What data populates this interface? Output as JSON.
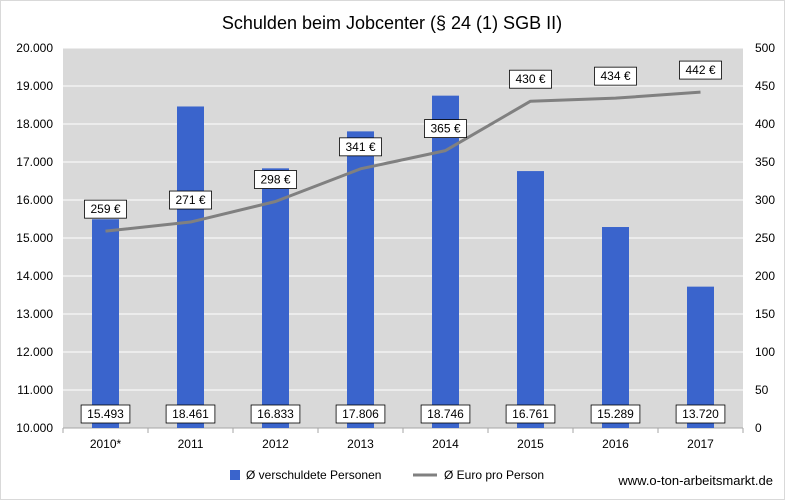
{
  "chart_data": {
    "type": "bar",
    "title": "Schulden beim Jobcenter (§ 24 (1) SGB II)",
    "categories": [
      "2010*",
      "2011",
      "2012",
      "2013",
      "2014",
      "2015",
      "2016",
      "2017"
    ],
    "series": [
      {
        "name": "Ø verschuldete Personen",
        "type": "bar",
        "axis": "left",
        "values": [
          15493,
          18461,
          16833,
          17806,
          18746,
          16761,
          15289,
          13720
        ],
        "labels": [
          "15.493",
          "18.461",
          "16.833",
          "17.806",
          "18.746",
          "16.761",
          "15.289",
          "13.720"
        ],
        "color": "#3a64cc"
      },
      {
        "name": "Ø Euro pro Person",
        "type": "line",
        "axis": "right",
        "values": [
          259,
          271,
          298,
          341,
          365,
          430,
          434,
          442
        ],
        "labels": [
          "259 €",
          "271 €",
          "298 €",
          "341 €",
          "365 €",
          "430 €",
          "434 €",
          "442 €"
        ],
        "color": "#808080"
      }
    ],
    "left_axis": {
      "ylim": [
        10000,
        20000
      ],
      "ticks": [
        10000,
        11000,
        12000,
        13000,
        14000,
        15000,
        16000,
        17000,
        18000,
        19000,
        20000
      ],
      "tick_labels": [
        "10.000",
        "11.000",
        "12.000",
        "13.000",
        "14.000",
        "15.000",
        "16.000",
        "17.000",
        "18.000",
        "19.000",
        "20.000"
      ]
    },
    "right_axis": {
      "ylim": [
        0,
        500
      ],
      "ticks": [
        0,
        50,
        100,
        150,
        200,
        250,
        300,
        350,
        400,
        450,
        500
      ],
      "tick_labels": [
        "0",
        "50",
        "100",
        "150",
        "200",
        "250",
        "300",
        "350",
        "400",
        "450",
        "500"
      ]
    },
    "grid": true,
    "legend_position": "bottom",
    "plot_background": "#d9d9d9",
    "grid_color": "#ffffff"
  },
  "watermark": "www.o-ton-arbeitsmarkt.de"
}
